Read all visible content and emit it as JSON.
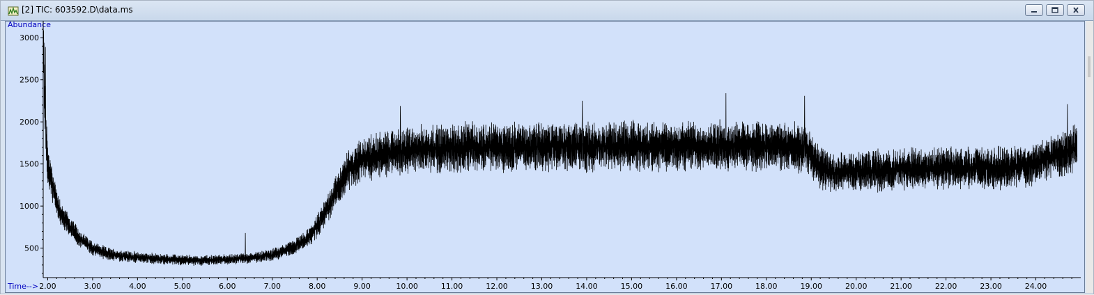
{
  "window": {
    "title": "[2] TIC: 603592.D\\data.ms",
    "buttons": [
      "minimize",
      "maximize",
      "close"
    ],
    "icons": {
      "app": "chromatogram-app-icon",
      "minimize": "minimize-icon",
      "maximize": "maximize-icon",
      "close": "close-icon"
    }
  },
  "colors": {
    "plot_background": "#d2e1fa",
    "trace": "#000000",
    "axis_label": "#0000c0"
  },
  "chart_data": {
    "type": "line",
    "title": "TIC: 603592.D\\data.ms",
    "ylabel": "Abundance",
    "xlabel": "Time-->",
    "xlim": [
      1.9,
      25.0
    ],
    "ylim": [
      150,
      3200
    ],
    "grid": false,
    "x_ticks": [
      "2.00",
      "3.00",
      "4.00",
      "5.00",
      "6.00",
      "7.00",
      "8.00",
      "9.00",
      "10.00",
      "11.00",
      "12.00",
      "13.00",
      "14.00",
      "15.00",
      "16.00",
      "17.00",
      "18.00",
      "19.00",
      "20.00",
      "21.00",
      "22.00",
      "23.00",
      "24.00"
    ],
    "y_ticks": [
      "500",
      "1000",
      "1500",
      "2000",
      "2500",
      "3000"
    ],
    "series": [
      {
        "x": [
          1.9,
          1.95,
          2.0,
          2.1,
          2.2,
          2.3,
          2.5,
          2.7,
          3.0,
          3.3,
          3.6,
          4.0,
          4.5,
          5.0,
          5.5,
          6.0,
          6.5,
          7.0,
          7.5,
          7.8,
          8.0,
          8.2,
          8.4,
          8.6,
          8.8,
          9.0,
          9.5,
          10.0,
          10.5,
          11.0,
          11.5,
          12.0,
          12.5,
          13.0,
          13.5,
          14.0,
          14.5,
          15.0,
          15.5,
          16.0,
          16.5,
          17.0,
          17.5,
          18.0,
          18.5,
          18.8,
          19.0,
          19.2,
          19.5,
          20.0,
          20.5,
          21.0,
          21.5,
          22.0,
          22.5,
          23.0,
          23.5,
          24.0,
          24.3,
          24.6,
          24.9
        ],
        "values": [
          2900,
          2000,
          1500,
          1250,
          1050,
          900,
          750,
          620,
          500,
          440,
          410,
          390,
          370,
          360,
          355,
          365,
          380,
          420,
          520,
          620,
          760,
          950,
          1150,
          1350,
          1480,
          1550,
          1620,
          1660,
          1680,
          1690,
          1700,
          1700,
          1700,
          1700,
          1710,
          1710,
          1710,
          1710,
          1710,
          1710,
          1710,
          1720,
          1720,
          1720,
          1700,
          1680,
          1600,
          1450,
          1400,
          1410,
          1420,
          1440,
          1450,
          1450,
          1450,
          1450,
          1460,
          1500,
          1580,
          1640,
          1700
        ],
        "noise_peaks": [
          {
            "x": 1.95,
            "value": 2890
          },
          {
            "x": 6.4,
            "value": 680
          },
          {
            "x": 9.85,
            "value": 2190
          },
          {
            "x": 13.9,
            "value": 2250
          },
          {
            "x": 17.1,
            "value": 2340
          },
          {
            "x": 18.85,
            "value": 2310
          },
          {
            "x": 24.7,
            "value": 2210
          }
        ]
      }
    ]
  }
}
